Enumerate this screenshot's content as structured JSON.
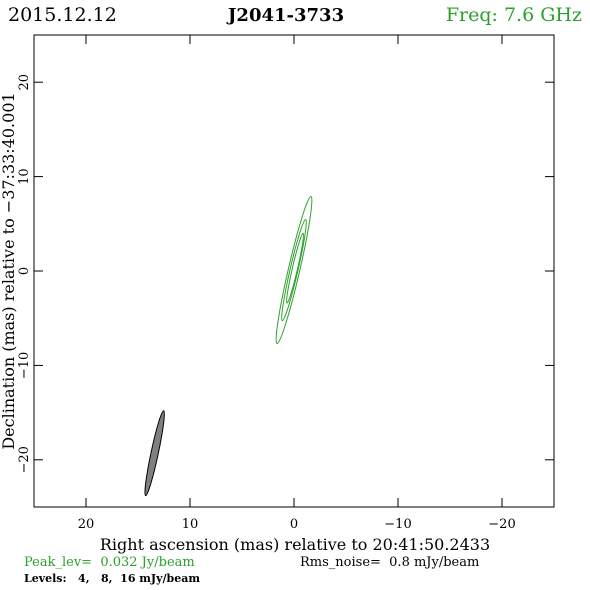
{
  "header": {
    "date": "2015.12.12",
    "source": "J2041-3733",
    "freq": "Freq: 7.6 GHz"
  },
  "colors": {
    "freq": "#2ca02c",
    "contour": "#2ca02c",
    "beam_fill": "#808080",
    "frame": "#000000",
    "peak": "#2ca02c"
  },
  "footer": {
    "peak": "Peak_lev=  0.032 Jy/beam",
    "rms": "Rms_noise=  0.8 mJy/beam",
    "levels": "Levels:   4,   8,  16 mJy/beam"
  },
  "chart_data": {
    "type": "contour",
    "xlabel": "Right ascension (mas) relative to 20:41:50.2433",
    "ylabel": "Declination (mas) relative to −37:33:40.001",
    "xlim": [
      25,
      -25
    ],
    "ylim": [
      -25,
      25
    ],
    "x_ticks": [
      20,
      10,
      0,
      -10,
      -20
    ],
    "y_ticks": [
      20,
      10,
      0,
      -10,
      -20
    ],
    "x_tick_labels": [
      "20",
      "10",
      "0",
      "−10",
      "−20"
    ],
    "y_tick_labels": [
      "20",
      "10",
      "0",
      "−10",
      "−20"
    ],
    "levels_mJy": [
      4,
      8,
      16
    ],
    "peak_Jy_per_beam": 0.032,
    "rms_mJy_per_beam": 0.8,
    "contours": [
      {
        "level": 4,
        "cx": 0.0,
        "cy": 0.1,
        "major": 8.0,
        "minor": 0.55,
        "pa_deg": 13
      },
      {
        "level": 8,
        "cx": 0.0,
        "cy": 0.1,
        "major": 5.5,
        "minor": 0.38,
        "pa_deg": 13
      },
      {
        "level": 16,
        "cx": -0.1,
        "cy": 0.3,
        "major": 3.8,
        "minor": 0.25,
        "pa_deg": 13
      }
    ],
    "beam": {
      "cx": 13.4,
      "cy": -19.3,
      "major": 4.6,
      "minor": 0.35,
      "pa_deg": 12
    }
  }
}
